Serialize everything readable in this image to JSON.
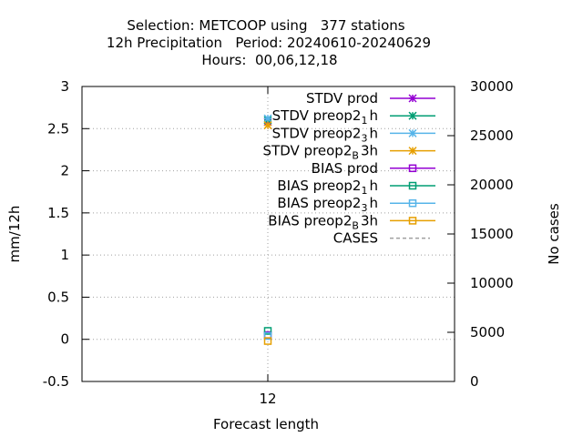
{
  "chart_data": {
    "type": "scatter",
    "title_lines": [
      "Selection: METCOOP using   377 stations",
      "12h Precipitation   Period: 20240610-20240629",
      "Hours:  00,06,12,18"
    ],
    "xlabel": "Forecast length",
    "ylabel": "mm/12h",
    "y2label": "No cases",
    "x_ticks": [
      "12"
    ],
    "x": [
      12
    ],
    "y_ticks": [
      "-0.5",
      "0",
      "0.5",
      "1",
      "1.5",
      "2",
      "2.5",
      "3"
    ],
    "ylim": [
      -0.5,
      3
    ],
    "y2_ticks": [
      "0",
      "5000",
      "10000",
      "15000",
      "20000",
      "25000",
      "30000"
    ],
    "y2lim": [
      0,
      30000
    ],
    "grid": true,
    "legend_position": "top-right",
    "series": [
      {
        "key": "stdv_prod",
        "label": {
          "pre": "STDV prod"
        },
        "color": "#9400d3",
        "marker": "star",
        "values": [
          2.58
        ]
      },
      {
        "key": "stdv_preop2_1h",
        "label": {
          "pre": "STDV preop2",
          "sub": "1",
          "post": "h"
        },
        "color": "#009e73",
        "marker": "star",
        "values": [
          2.6
        ]
      },
      {
        "key": "stdv_preop2_3h",
        "label": {
          "pre": "STDV preop2",
          "sub": "3",
          "post": "h"
        },
        "color": "#56b4e9",
        "marker": "star",
        "values": [
          2.62
        ]
      },
      {
        "key": "stdv_preop2_b3h",
        "label": {
          "pre": "STDV preop2",
          "sub": "B",
          "post": "3h"
        },
        "color": "#e69f00",
        "marker": "star",
        "values": [
          2.54
        ]
      },
      {
        "key": "bias_prod",
        "label": {
          "pre": "BIAS prod"
        },
        "color": "#9400d3",
        "marker": "square",
        "values": [
          0.05
        ]
      },
      {
        "key": "bias_preop2_1h",
        "label": {
          "pre": "BIAS preop2",
          "sub": "1",
          "post": "h"
        },
        "color": "#009e73",
        "marker": "square",
        "values": [
          0.1
        ]
      },
      {
        "key": "bias_preop2_3h",
        "label": {
          "pre": "BIAS preop2",
          "sub": "3",
          "post": "h"
        },
        "color": "#56b4e9",
        "marker": "square",
        "values": [
          0.04
        ]
      },
      {
        "key": "bias_preop2_b3h",
        "label": {
          "pre": "BIAS preop2",
          "sub": "B",
          "post": "3h"
        },
        "color": "#e69f00",
        "marker": "square",
        "values": [
          -0.02
        ]
      },
      {
        "key": "cases",
        "label": {
          "pre": "CASES"
        },
        "color": "#a0a0a0",
        "marker": "dashed-line",
        "axis": "y2",
        "values": [
          4400
        ]
      }
    ]
  }
}
